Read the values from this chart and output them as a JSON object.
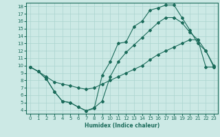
{
  "xlabel": "Humidex (Indice chaleur)",
  "ylabel": "",
  "bg_color": "#cce9e5",
  "grid_color": "#aad4cf",
  "line_color": "#1a6b5a",
  "xlim": [
    -0.5,
    23.5
  ],
  "ylim": [
    3.5,
    18.5
  ],
  "xticks": [
    0,
    1,
    2,
    3,
    4,
    5,
    6,
    7,
    8,
    9,
    10,
    11,
    12,
    13,
    14,
    15,
    16,
    17,
    18,
    19,
    20,
    21,
    22,
    23
  ],
  "yticks": [
    4,
    5,
    6,
    7,
    8,
    9,
    10,
    11,
    12,
    13,
    14,
    15,
    16,
    17,
    18
  ],
  "line1_x": [
    0,
    1,
    2,
    3,
    4,
    5,
    6,
    7,
    8,
    9,
    10,
    11,
    12,
    13,
    14,
    15,
    16,
    17,
    18,
    19,
    20,
    21,
    22,
    23
  ],
  "line1_y": [
    9.8,
    9.2,
    8.2,
    6.5,
    5.2,
    5.0,
    4.4,
    3.9,
    4.2,
    8.7,
    10.5,
    13.0,
    13.2,
    15.3,
    16.0,
    17.5,
    17.8,
    18.2,
    18.2,
    16.5,
    14.8,
    13.0,
    12.0,
    10.0
  ],
  "line2_x": [
    0,
    1,
    2,
    3,
    4,
    5,
    6,
    7,
    8,
    9,
    10,
    11,
    12,
    13,
    14,
    15,
    16,
    17,
    18,
    19,
    20,
    21,
    22,
    23
  ],
  "line2_y": [
    9.8,
    9.2,
    8.5,
    7.8,
    7.5,
    7.3,
    7.0,
    6.8,
    7.0,
    7.5,
    8.0,
    8.5,
    9.0,
    9.5,
    10.0,
    10.8,
    11.5,
    12.0,
    12.5,
    13.0,
    13.5,
    13.5,
    9.8,
    9.8
  ],
  "line3_x": [
    0,
    1,
    2,
    3,
    4,
    5,
    6,
    7,
    8,
    9,
    10,
    11,
    12,
    13,
    14,
    15,
    16,
    17,
    18,
    19,
    20,
    21,
    22,
    23
  ],
  "line3_y": [
    9.8,
    9.2,
    8.2,
    6.5,
    5.2,
    5.0,
    4.4,
    3.9,
    4.3,
    5.2,
    8.5,
    10.5,
    11.8,
    12.8,
    13.8,
    14.8,
    15.8,
    16.5,
    16.5,
    15.8,
    14.5,
    13.5,
    12.0,
    9.8
  ]
}
